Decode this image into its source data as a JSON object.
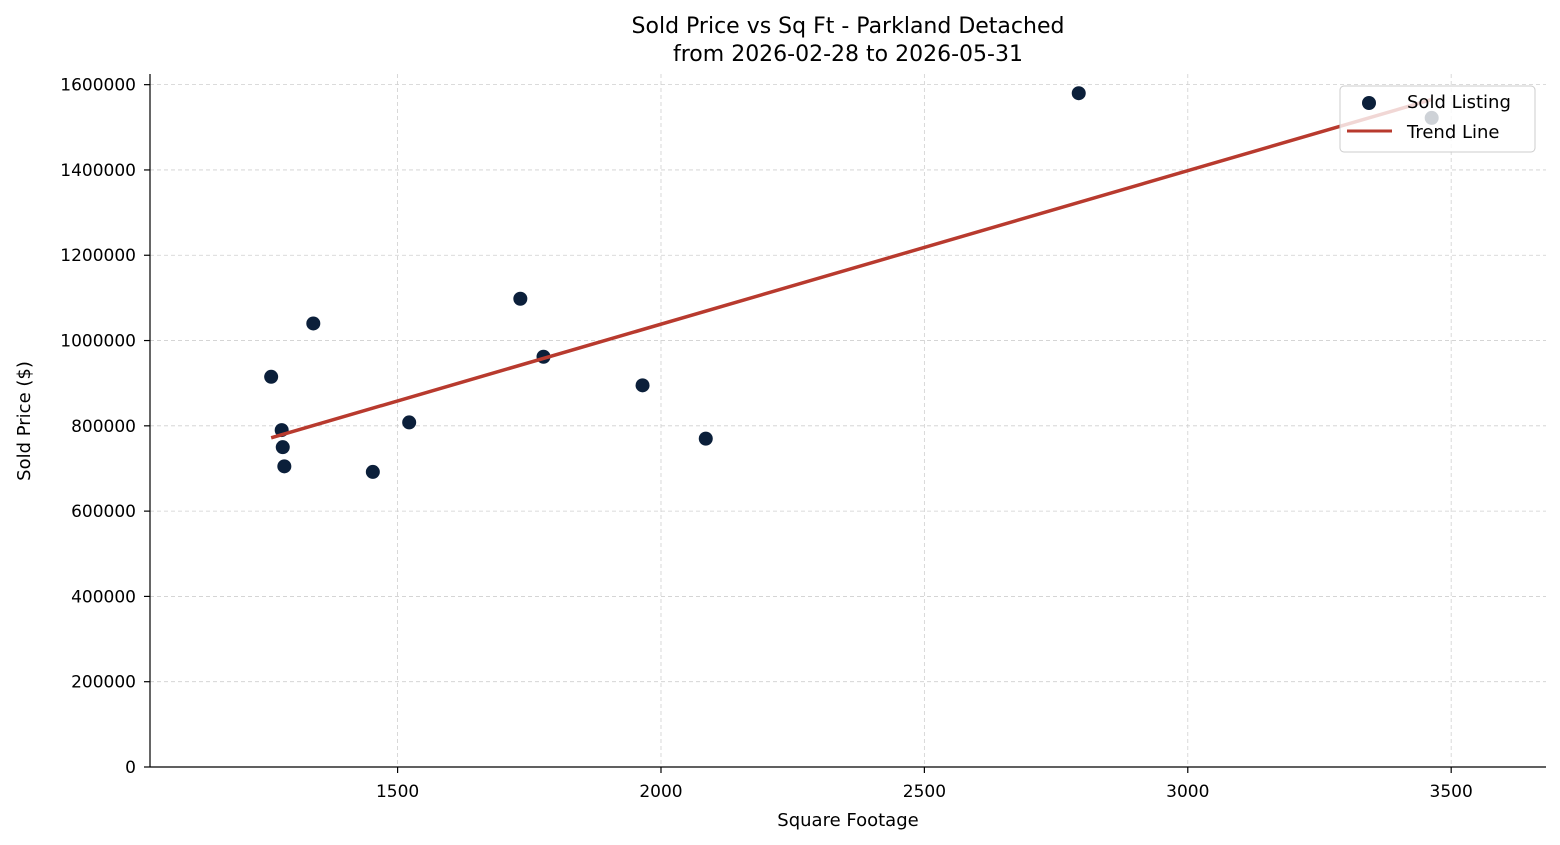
{
  "chart_data": {
    "type": "scatter",
    "title_line1": "Sold Price vs Sq Ft - Parkland Detached",
    "title_line2": "from 2026-02-28 to 2026-05-31",
    "xlabel": "Square Footage",
    "ylabel": "Sold Price ($)",
    "xlim": [
      1030,
      3680
    ],
    "ylim": [
      0,
      1625000
    ],
    "xticks": [
      1500,
      2000,
      2500,
      3000,
      3500
    ],
    "yticks": [
      0,
      200000,
      400000,
      600000,
      800000,
      1000000,
      1200000,
      1400000,
      1600000
    ],
    "grid": true,
    "legend_position": "top-right",
    "series": [
      {
        "name": "Sold Listing",
        "kind": "scatter",
        "color": "#0b1f3a",
        "points": [
          {
            "x": 1260,
            "y": 915000
          },
          {
            "x": 1280,
            "y": 790000
          },
          {
            "x": 1282,
            "y": 750000
          },
          {
            "x": 1285,
            "y": 705000
          },
          {
            "x": 1340,
            "y": 1040000
          },
          {
            "x": 1453,
            "y": 692000
          },
          {
            "x": 1522,
            "y": 808000
          },
          {
            "x": 1733,
            "y": 1098000
          },
          {
            "x": 1777,
            "y": 962000
          },
          {
            "x": 1965,
            "y": 895000
          },
          {
            "x": 2085,
            "y": 770000
          },
          {
            "x": 2793,
            "y": 1580000
          },
          {
            "x": 3463,
            "y": 1522000
          }
        ]
      },
      {
        "name": "Trend Line",
        "kind": "line",
        "color": "#b83a2e",
        "points": [
          {
            "x": 1260,
            "y": 772000
          },
          {
            "x": 3463,
            "y": 1565000
          }
        ]
      }
    ]
  }
}
